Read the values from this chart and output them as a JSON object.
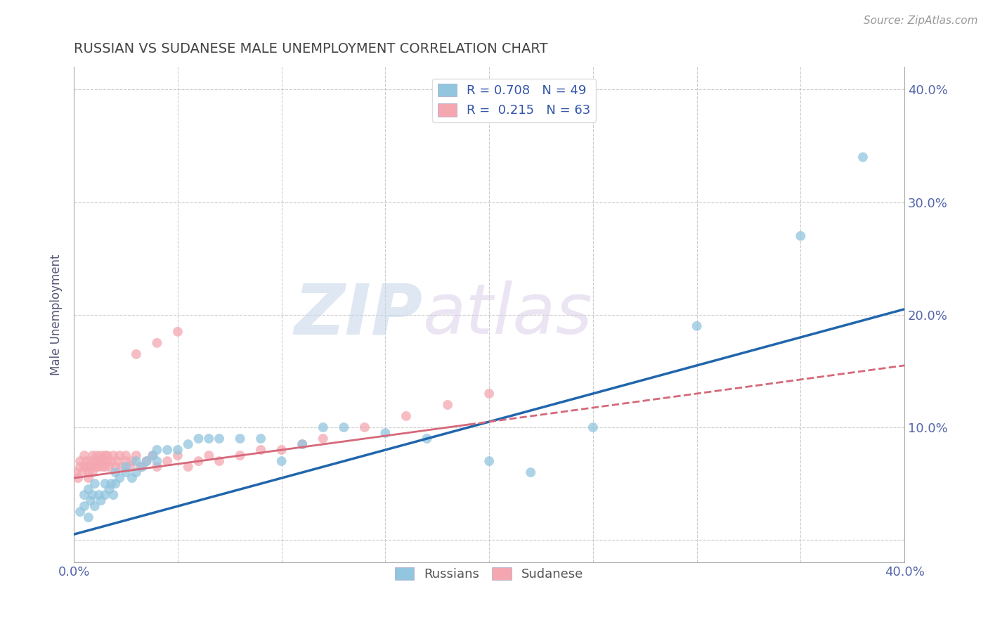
{
  "title": "RUSSIAN VS SUDANESE MALE UNEMPLOYMENT CORRELATION CHART",
  "source_text": "Source: ZipAtlas.com",
  "ylabel": "Male Unemployment",
  "xlim": [
    0.0,
    0.4
  ],
  "ylim": [
    -0.02,
    0.42
  ],
  "xticks": [
    0.0,
    0.05,
    0.1,
    0.15,
    0.2,
    0.25,
    0.3,
    0.35,
    0.4
  ],
  "xticklabels": [
    "0.0%",
    "",
    "",
    "",
    "",
    "",
    "",
    "",
    "40.0%"
  ],
  "yticks": [
    0.0,
    0.1,
    0.2,
    0.3,
    0.4
  ],
  "yticklabels": [
    "",
    "10.0%",
    "20.0%",
    "30.0%",
    "40.0%"
  ],
  "russian_R": 0.708,
  "russian_N": 49,
  "sudanese_R": 0.215,
  "sudanese_N": 63,
  "russian_color": "#92c5de",
  "sudanese_color": "#f4a7b0",
  "russian_line_color": "#2166ac",
  "sudanese_line_color": "#d6687a",
  "russian_scatter_x": [
    0.003,
    0.005,
    0.005,
    0.007,
    0.007,
    0.008,
    0.009,
    0.01,
    0.01,
    0.012,
    0.013,
    0.015,
    0.015,
    0.017,
    0.018,
    0.019,
    0.02,
    0.02,
    0.022,
    0.025,
    0.025,
    0.028,
    0.03,
    0.03,
    0.033,
    0.035,
    0.038,
    0.04,
    0.04,
    0.045,
    0.05,
    0.055,
    0.06,
    0.065,
    0.07,
    0.08,
    0.09,
    0.1,
    0.11,
    0.12,
    0.13,
    0.15,
    0.17,
    0.2,
    0.22,
    0.25,
    0.3,
    0.35,
    0.38
  ],
  "russian_scatter_y": [
    0.025,
    0.03,
    0.04,
    0.02,
    0.045,
    0.035,
    0.04,
    0.03,
    0.05,
    0.04,
    0.035,
    0.05,
    0.04,
    0.045,
    0.05,
    0.04,
    0.06,
    0.05,
    0.055,
    0.06,
    0.065,
    0.055,
    0.06,
    0.07,
    0.065,
    0.07,
    0.075,
    0.07,
    0.08,
    0.08,
    0.08,
    0.085,
    0.09,
    0.09,
    0.09,
    0.09,
    0.09,
    0.07,
    0.085,
    0.1,
    0.1,
    0.095,
    0.09,
    0.07,
    0.06,
    0.1,
    0.19,
    0.27,
    0.34
  ],
  "sudanese_scatter_x": [
    0.001,
    0.002,
    0.003,
    0.003,
    0.004,
    0.005,
    0.005,
    0.006,
    0.006,
    0.007,
    0.007,
    0.008,
    0.008,
    0.009,
    0.009,
    0.01,
    0.01,
    0.011,
    0.011,
    0.012,
    0.012,
    0.013,
    0.013,
    0.014,
    0.014,
    0.015,
    0.015,
    0.016,
    0.016,
    0.017,
    0.018,
    0.019,
    0.02,
    0.021,
    0.022,
    0.023,
    0.025,
    0.025,
    0.027,
    0.028,
    0.03,
    0.032,
    0.035,
    0.038,
    0.04,
    0.045,
    0.05,
    0.055,
    0.06,
    0.065,
    0.07,
    0.08,
    0.09,
    0.1,
    0.11,
    0.12,
    0.14,
    0.16,
    0.18,
    0.2,
    0.03,
    0.04,
    0.05
  ],
  "sudanese_scatter_y": [
    0.06,
    0.055,
    0.065,
    0.07,
    0.06,
    0.065,
    0.075,
    0.065,
    0.07,
    0.055,
    0.06,
    0.07,
    0.065,
    0.075,
    0.06,
    0.065,
    0.07,
    0.065,
    0.075,
    0.07,
    0.065,
    0.07,
    0.075,
    0.065,
    0.07,
    0.075,
    0.065,
    0.07,
    0.075,
    0.065,
    0.07,
    0.075,
    0.065,
    0.07,
    0.075,
    0.065,
    0.07,
    0.075,
    0.065,
    0.07,
    0.075,
    0.065,
    0.07,
    0.075,
    0.065,
    0.07,
    0.075,
    0.065,
    0.07,
    0.075,
    0.07,
    0.075,
    0.08,
    0.08,
    0.085,
    0.09,
    0.1,
    0.11,
    0.12,
    0.13,
    0.165,
    0.175,
    0.185
  ],
  "russian_trendline": [
    0.005,
    0.2
  ],
  "sudanese_trendline_solid": [
    0.005,
    0.19
  ],
  "watermark_zip": "ZIP",
  "watermark_atlas": "atlas",
  "background_color": "#ffffff",
  "grid_color": "#cccccc",
  "title_color": "#444444",
  "axis_label_color": "#555577",
  "tick_color": "#5566aa"
}
